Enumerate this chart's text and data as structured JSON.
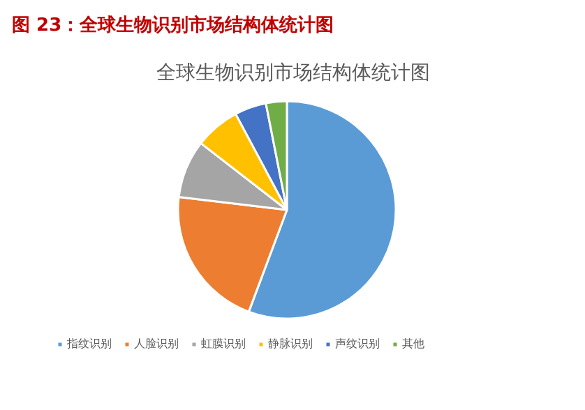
{
  "chart_data": {
    "type": "pie",
    "title": "图 23：全球生物识别市场结构体统计图",
    "subtitle": "全球生物识别市场结构体统计图",
    "categories": [
      "指纹识别",
      "人脸识别",
      "虹膜识别",
      "静脉识别",
      "声纹识别",
      "其他"
    ],
    "values": [
      55.7,
      21.2,
      8.6,
      6.7,
      4.7,
      3.1
    ],
    "colors": [
      "#5b9bd5",
      "#ed7d31",
      "#a5a5a5",
      "#ffc000",
      "#4472c4",
      "#70ad47"
    ],
    "legend": "bottom"
  }
}
